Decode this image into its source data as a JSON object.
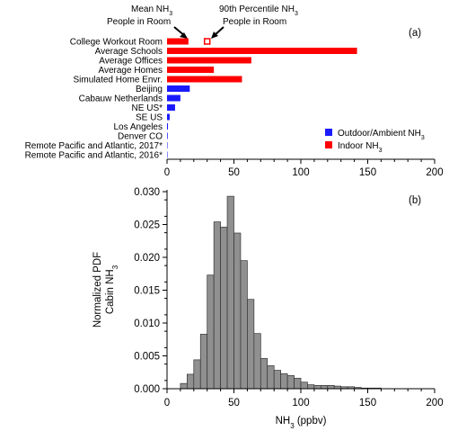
{
  "chart_data": [
    {
      "type": "bar",
      "orientation": "horizontal",
      "panel_label": "(a)",
      "categories": [
        "College Workout Room",
        "Average Schools",
        "Average Offices",
        "Average Homes",
        "Simulated Home Envr.",
        "Beijing",
        "Cabauw Netherlands",
        "NE US*",
        "SE US",
        "Los Angeles",
        "Denver CO",
        "Remote Pacific and Atlantic, 2017*",
        "Remote Pacific and Atlantic, 2016*"
      ],
      "values": [
        16,
        142,
        63,
        35,
        56,
        17,
        10,
        6,
        2,
        0.7,
        0.5,
        0.3,
        0.2
      ],
      "groups": [
        "indoor",
        "indoor",
        "indoor",
        "indoor",
        "indoor",
        "outdoor",
        "outdoor",
        "outdoor",
        "outdoor",
        "outdoor",
        "outdoor",
        "outdoor",
        "outdoor"
      ],
      "college_90th_percentile": 30,
      "annotations": {
        "mean": [
          "Mean NH",
          "3",
          "People in Room"
        ],
        "p90": [
          "90th Percentile NH",
          "3",
          "People in Room"
        ]
      },
      "legend": {
        "outdoor": [
          "Outdoor/Ambient NH",
          "3"
        ],
        "indoor": [
          "Indoor NH",
          "3"
        ],
        "placement": "right"
      },
      "xlim": [
        0,
        200
      ],
      "xticks": [
        "0",
        "50",
        "100",
        "150",
        "200"
      ],
      "colors": {
        "indoor": "#ff0000",
        "outdoor": "#1a1aff"
      }
    },
    {
      "type": "histogram",
      "panel_label": "(b)",
      "bin_width": 5,
      "bin_starts": [
        10,
        15,
        20,
        25,
        30,
        35,
        40,
        45,
        50,
        55,
        60,
        65,
        70,
        75,
        80,
        85,
        90,
        95,
        100,
        105,
        110,
        115,
        120,
        125,
        130,
        135,
        140,
        145,
        150,
        155
      ],
      "values": [
        0.0008,
        0.0022,
        0.0044,
        0.0083,
        0.0173,
        0.0254,
        0.0246,
        0.0293,
        0.0237,
        0.0195,
        0.0136,
        0.0084,
        0.0046,
        0.0035,
        0.0028,
        0.0023,
        0.002,
        0.0016,
        0.001,
        0.0006,
        0.0005,
        0.0005,
        0.0005,
        0.0004,
        0.0003,
        0.0003,
        0.0002,
        0.0001,
        0.0001,
        0.0001
      ],
      "xlabel": [
        "NH",
        "3",
        " (ppbv)"
      ],
      "ylabel": [
        "Normalized PDF",
        "Cabin NH",
        "3"
      ],
      "xlim": [
        0,
        200
      ],
      "ylim": [
        0,
        0.03
      ],
      "xticks": [
        "0",
        "50",
        "100",
        "150",
        "200"
      ],
      "yticks": [
        "0.000",
        "0.005",
        "0.010",
        "0.015",
        "0.020",
        "0.025",
        "0.030"
      ],
      "color": "#909090"
    }
  ]
}
